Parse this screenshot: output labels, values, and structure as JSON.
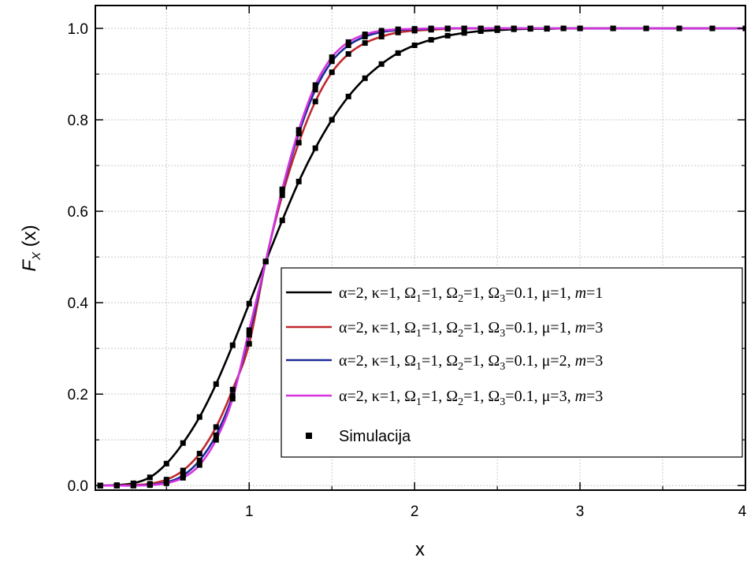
{
  "chart_data": {
    "type": "line",
    "title": "",
    "xlabel": "x",
    "ylabel": {
      "main": "F",
      "sub": "X",
      "rest": " (x)"
    },
    "xlim": [
      0.07,
      4.0
    ],
    "ylim": [
      -0.01,
      1.05
    ],
    "x_ticks": [
      1,
      2,
      3,
      4
    ],
    "x_tick_labels": [
      "1",
      "2",
      "3",
      "4"
    ],
    "y_ticks": [
      0.0,
      0.2,
      0.4,
      0.6,
      0.8,
      1.0
    ],
    "y_tick_labels": [
      "0.0",
      "0.2",
      "0.4",
      "0.6",
      "0.8",
      "1.0"
    ],
    "grid": true,
    "legend_position": "center-right",
    "series": [
      {
        "name": "α=2, κ=1, Ω1=1, Ω2=1, Ω3=0.1, μ=1, m=1",
        "label_parts": [
          "α=2, κ=1, Ω",
          "1",
          "=1, Ω",
          "2",
          "=1, Ω",
          "3",
          "=0.1, μ=1, ",
          "m",
          "=1"
        ],
        "color": "#000000",
        "x": [
          0.1,
          0.2,
          0.3,
          0.4,
          0.5,
          0.6,
          0.7,
          0.8,
          0.9,
          1.0,
          1.1,
          1.2,
          1.3,
          1.4,
          1.5,
          1.6,
          1.7,
          1.8,
          1.9,
          2.0,
          2.1,
          2.2,
          2.3,
          2.4,
          2.5,
          2.6,
          2.7,
          2.8,
          2.9,
          3.0,
          3.2,
          3.4,
          3.6,
          3.8,
          4.0
        ],
        "values": [
          0.0,
          0.001,
          0.005,
          0.018,
          0.048,
          0.093,
          0.15,
          0.222,
          0.307,
          0.398,
          0.49,
          0.58,
          0.665,
          0.738,
          0.8,
          0.851,
          0.891,
          0.922,
          0.946,
          0.963,
          0.975,
          0.984,
          0.99,
          0.994,
          0.996,
          0.998,
          0.999,
          0.999,
          1.0,
          1.0,
          1.0,
          1.0,
          1.0,
          1.0,
          1.0
        ]
      },
      {
        "name": "α=2, κ=1, Ω1=1, Ω2=1, Ω3=0.1, μ=1, m=3",
        "label_parts": [
          "α=2, κ=1, Ω",
          "1",
          "=1, Ω",
          "2",
          "=1, Ω",
          "3",
          "=0.1, μ=1, ",
          "m",
          "=3"
        ],
        "color": "#c0282d",
        "x": [
          0.1,
          0.2,
          0.3,
          0.4,
          0.5,
          0.6,
          0.7,
          0.8,
          0.9,
          1.0,
          1.1,
          1.2,
          1.3,
          1.4,
          1.5,
          1.6,
          1.7,
          1.8,
          1.9,
          2.0,
          2.1,
          2.2,
          2.3,
          2.4,
          2.5,
          2.6,
          2.7,
          2.8,
          2.9,
          3.0,
          3.2,
          3.4,
          3.6,
          3.8,
          4.0
        ],
        "values": [
          0.0,
          0.0,
          0.001,
          0.004,
          0.013,
          0.033,
          0.07,
          0.128,
          0.21,
          0.31,
          0.49,
          0.635,
          0.75,
          0.84,
          0.904,
          0.944,
          0.968,
          0.982,
          0.991,
          0.995,
          0.997,
          0.999,
          1.0,
          1.0,
          1.0,
          1.0,
          1.0,
          1.0,
          1.0,
          1.0,
          1.0,
          1.0,
          1.0,
          1.0,
          1.0
        ]
      },
      {
        "name": "α=2, κ=1, Ω1=1, Ω2=1, Ω3=0.1, μ=2, m=3",
        "label_parts": [
          "α=2, κ=1, Ω",
          "1",
          "=1, Ω",
          "2",
          "=1, Ω",
          "3",
          "=0.1, μ=2, ",
          "m",
          "=3"
        ],
        "color": "#1b2b96",
        "x": [
          0.1,
          0.2,
          0.3,
          0.4,
          0.5,
          0.6,
          0.7,
          0.8,
          0.9,
          1.0,
          1.1,
          1.2,
          1.3,
          1.4,
          1.5,
          1.6,
          1.7,
          1.8,
          1.9,
          2.0,
          2.1,
          2.2,
          2.3,
          2.4,
          2.5,
          2.6,
          2.7,
          2.8,
          2.9,
          3.0,
          3.2,
          3.4,
          3.6,
          3.8,
          4.0
        ],
        "values": [
          0.0,
          0.0,
          0.0,
          0.002,
          0.007,
          0.022,
          0.055,
          0.11,
          0.197,
          0.33,
          0.49,
          0.645,
          0.77,
          0.866,
          0.928,
          0.963,
          0.982,
          0.992,
          0.996,
          0.998,
          0.999,
          1.0,
          1.0,
          1.0,
          1.0,
          1.0,
          1.0,
          1.0,
          1.0,
          1.0,
          1.0,
          1.0,
          1.0,
          1.0,
          1.0
        ]
      },
      {
        "name": "α=2, κ=1, Ω1=1, Ω2=1, Ω3=0.1, μ=3, m=3",
        "label_parts": [
          "α=2, κ=1, Ω",
          "1",
          "=1, Ω",
          "2",
          "=1, Ω",
          "3",
          "=0.1, μ=3, ",
          "m",
          "=3"
        ],
        "color": "#d633e0",
        "x": [
          0.1,
          0.2,
          0.3,
          0.4,
          0.5,
          0.6,
          0.7,
          0.8,
          0.9,
          1.0,
          1.1,
          1.2,
          1.3,
          1.4,
          1.5,
          1.6,
          1.7,
          1.8,
          1.9,
          2.0,
          2.1,
          2.2,
          2.3,
          2.4,
          2.5,
          2.6,
          2.7,
          2.8,
          2.9,
          3.0,
          3.2,
          3.4,
          3.6,
          3.8,
          4.0
        ],
        "values": [
          0.0,
          0.0,
          0.0,
          0.001,
          0.005,
          0.017,
          0.045,
          0.1,
          0.19,
          0.34,
          0.49,
          0.648,
          0.778,
          0.876,
          0.937,
          0.97,
          0.987,
          0.995,
          0.998,
          0.999,
          1.0,
          1.0,
          1.0,
          1.0,
          1.0,
          1.0,
          1.0,
          1.0,
          1.0,
          1.0,
          1.0,
          1.0,
          1.0,
          1.0,
          1.0
        ]
      }
    ],
    "simulation": {
      "name": "Simulacija",
      "color": "#000000"
    }
  }
}
